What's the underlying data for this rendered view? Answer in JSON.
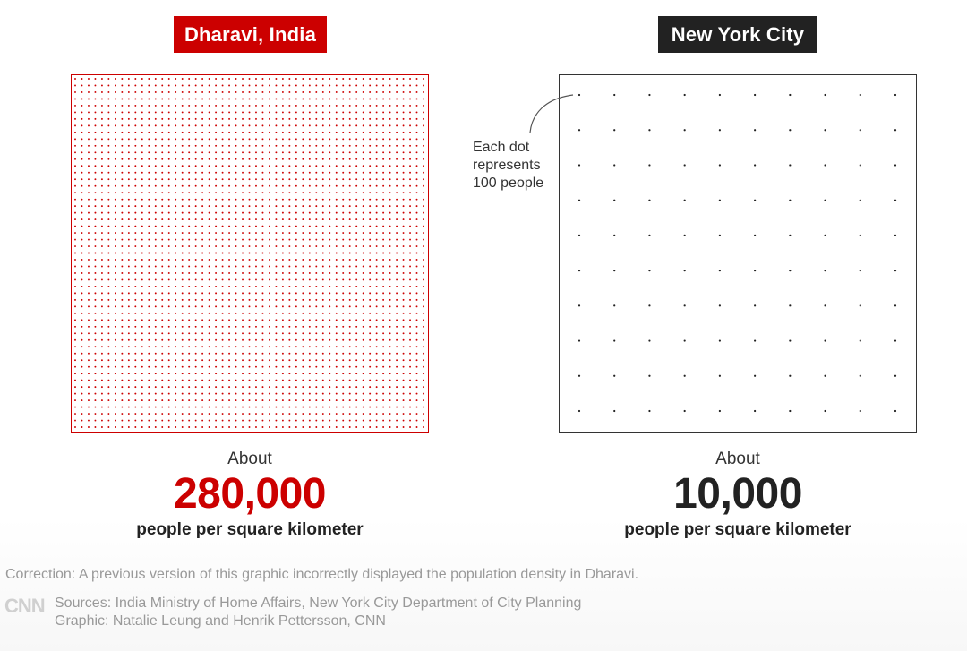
{
  "chart_data": [
    {
      "type": "dot-density",
      "title": "Dharavi, India",
      "prefix": "About",
      "value": 280000,
      "value_label": "280,000",
      "unit": "people per square kilometer",
      "color": "#cc0000",
      "dot_value": 100
    },
    {
      "type": "dot-density",
      "title": "New York City",
      "prefix": "About",
      "value": 10000,
      "value_label": "10,000",
      "unit": "people per square kilometer",
      "color": "#222222",
      "dot_value": 100
    }
  ],
  "annotation": "Each dot represents 100 people",
  "correction": "Correction: A previous version of this graphic incorrectly displayed the population density in Dharavi.",
  "sources": "Sources: India Ministry of Home Affairs, New York City Department of City Planning",
  "credit": "Graphic: Natalie Leung and Henrik Pettersson, CNN",
  "logo": "CNN",
  "colors": {
    "left_tag": "#cc0000",
    "right_tag": "#222222"
  }
}
